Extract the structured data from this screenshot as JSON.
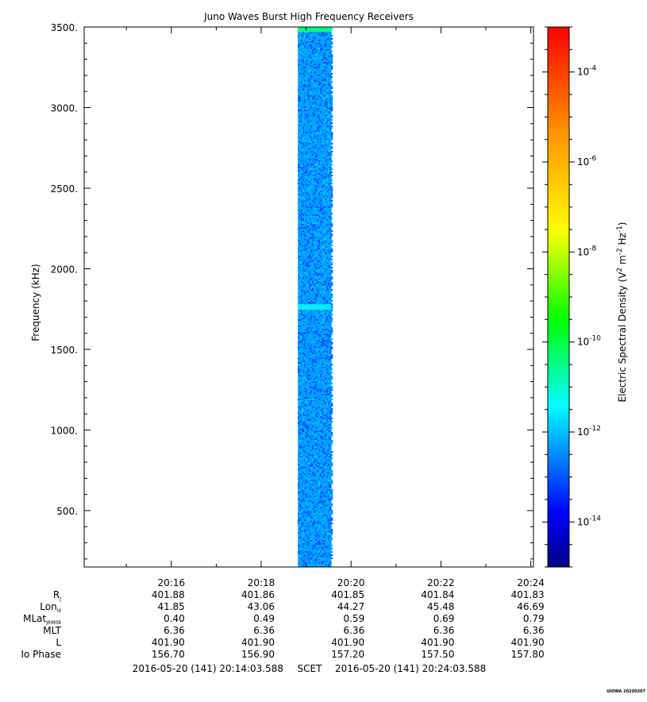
{
  "chart_data": {
    "type": "heatmap",
    "title": "Juno Waves Burst High Frequency Receivers",
    "ylabel": "Frequency (kHz)",
    "ylim": [
      150,
      3500
    ],
    "y_ticks": [
      500,
      1000,
      1500,
      2000,
      2500,
      3000,
      3500
    ],
    "y_tick_labels": [
      "500.",
      "1000.",
      "1500.",
      "2000.",
      "2500.",
      "3000.",
      "3500."
    ],
    "xlim": [
      "20:14:03.588",
      "20:24:03.588"
    ],
    "x_ticks": [
      "20:16",
      "20:18",
      "20:20",
      "20:22",
      "20:24"
    ],
    "data_block": {
      "t_start": "20:18:49",
      "t_end": "20:19:34",
      "f_min": 150,
      "f_max": 3500,
      "typical_log10_density": -12.3,
      "min_log10_density": -13.2,
      "max_log10_density": -11.8,
      "top_edge_band": {
        "f_min": 3470,
        "f_max": 3500,
        "log10_density": -10.5
      },
      "bright_band": {
        "f_min": 1745,
        "f_max": 1780,
        "log10_density": -11.4
      }
    },
    "colorbar": {
      "label_main": "Electric Spectral Density (V",
      "label_tail": " m",
      "label_tail2": " Hz",
      "label_end": ")",
      "label_sup1": "2",
      "label_sup2": "-2",
      "label_sup3": "-1",
      "log10_min": -15,
      "log10_max": -3,
      "ticks": [
        -14,
        -12,
        -10,
        -8,
        -6,
        -4
      ],
      "tick_base": "10",
      "tick_exponents": [
        "-14",
        "-12",
        "-10",
        "-8",
        "-6",
        "-4"
      ]
    },
    "ephemeris": {
      "row_labels": [
        {
          "main": "R",
          "sub": "J"
        },
        {
          "main": "Lon",
          "sub": "III"
        },
        {
          "main": "MLat",
          "sub": "JRM09"
        },
        {
          "main": "MLT",
          "sub": ""
        },
        {
          "main": "L",
          "sub": ""
        },
        {
          "main": "Io Phase",
          "sub": ""
        }
      ],
      "rows": [
        [
          "401.88",
          "401.86",
          "401.85",
          "401.84",
          "401.83"
        ],
        [
          "41.85",
          "43.06",
          "44.27",
          "45.48",
          "46.69"
        ],
        [
          "0.40",
          "0.49",
          "0.59",
          "0.69",
          "0.79"
        ],
        [
          "6.36",
          "6.36",
          "6.36",
          "6.36",
          "6.36"
        ],
        [
          "401.90",
          "401.90",
          "401.90",
          "401.90",
          "401.90"
        ],
        [
          "156.70",
          "156.90",
          "157.20",
          "157.50",
          "157.80"
        ]
      ]
    },
    "time_range": {
      "start": "2016-05-20 (141) 20:14:03.588",
      "label": "SCET",
      "end": "2016-05-20 (141) 20:24:03.588"
    },
    "footer": "UIOWA 20200307"
  }
}
